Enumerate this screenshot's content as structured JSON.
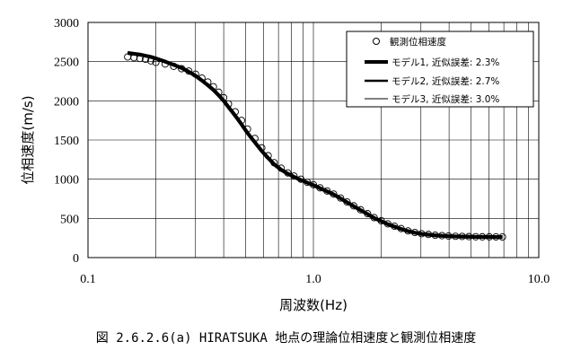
{
  "chart_data": {
    "type": "line",
    "xscale": "log",
    "xlim": [
      0.1,
      10.0
    ],
    "ylim": [
      0,
      3000
    ],
    "xticks": [
      "0.1",
      "1.0",
      "10.0"
    ],
    "yticks": [
      "0",
      "500",
      "1000",
      "1500",
      "2000",
      "2500",
      "3000"
    ],
    "xlabel": "周波数(Hz)",
    "ylabel": "位相速度(m/s)",
    "grid": true,
    "legend_position": "top-right",
    "series": [
      {
        "name": "観測位相速度",
        "style": "markers",
        "x": [
          0.15,
          0.16,
          0.17,
          0.18,
          0.19,
          0.2,
          0.22,
          0.24,
          0.26,
          0.28,
          0.3,
          0.32,
          0.34,
          0.36,
          0.38,
          0.4,
          0.42,
          0.45,
          0.48,
          0.51,
          0.55,
          0.59,
          0.63,
          0.67,
          0.72,
          0.77,
          0.82,
          0.88,
          0.94,
          1.0,
          1.07,
          1.15,
          1.23,
          1.32,
          1.41,
          1.51,
          1.62,
          1.74,
          1.86,
          2.0,
          2.14,
          2.29,
          2.45,
          2.63,
          2.82,
          3.02,
          3.24,
          3.47,
          3.72,
          3.98,
          4.27,
          4.57,
          4.9,
          5.25,
          5.62,
          6.03,
          6.46,
          6.9
        ],
        "y": [
          2560,
          2550,
          2540,
          2530,
          2510,
          2490,
          2470,
          2440,
          2410,
          2380,
          2340,
          2290,
          2240,
          2180,
          2110,
          2040,
          1960,
          1860,
          1750,
          1640,
          1520,
          1400,
          1300,
          1210,
          1140,
          1080,
          1040,
          1000,
          960,
          930,
          890,
          850,
          810,
          760,
          710,
          660,
          610,
          560,
          510,
          470,
          430,
          400,
          370,
          340,
          320,
          305,
          295,
          285,
          280,
          275,
          272,
          270,
          268,
          266,
          265,
          265,
          264,
          263
        ]
      },
      {
        "name": "モデル1, 近似誤差: 2.3%",
        "style": "line-thick",
        "x": [
          0.15,
          0.16,
          0.17,
          0.18,
          0.19,
          0.2,
          0.22,
          0.24,
          0.26,
          0.28,
          0.3,
          0.32,
          0.34,
          0.36,
          0.38,
          0.4,
          0.42,
          0.45,
          0.48,
          0.51,
          0.55,
          0.59,
          0.63,
          0.67,
          0.72,
          0.77,
          0.82,
          0.88,
          0.94,
          1.0,
          1.07,
          1.15,
          1.23,
          1.32,
          1.41,
          1.51,
          1.62,
          1.74,
          1.86,
          2.0,
          2.14,
          2.29,
          2.45,
          2.63,
          2.82,
          3.02,
          3.24,
          3.47,
          3.72,
          3.98,
          4.27,
          4.57,
          4.9,
          5.25,
          5.62,
          6.03,
          6.46,
          6.9
        ],
        "y": [
          2610,
          2600,
          2590,
          2575,
          2560,
          2540,
          2500,
          2460,
          2420,
          2370,
          2320,
          2260,
          2200,
          2140,
          2070,
          2000,
          1920,
          1810,
          1700,
          1590,
          1470,
          1360,
          1270,
          1190,
          1120,
          1070,
          1030,
          990,
          955,
          925,
          885,
          845,
          805,
          755,
          705,
          655,
          605,
          555,
          505,
          465,
          425,
          395,
          365,
          337,
          317,
          302,
          292,
          283,
          278,
          273,
          270,
          268,
          266,
          264,
          263,
          263,
          262,
          262
        ]
      },
      {
        "name": "モデル2, 近似誤差: 2.7%",
        "style": "line-medium",
        "x": [
          0.15,
          0.16,
          0.17,
          0.18,
          0.19,
          0.2,
          0.22,
          0.24,
          0.26,
          0.28,
          0.3,
          0.32,
          0.34,
          0.36,
          0.38,
          0.4,
          0.42,
          0.45,
          0.48,
          0.51,
          0.55,
          0.59,
          0.63,
          0.67,
          0.72,
          0.77,
          0.82,
          0.88,
          0.94,
          1.0,
          1.07,
          1.15,
          1.23,
          1.32,
          1.41,
          1.51,
          1.62,
          1.74,
          1.86,
          2.0,
          2.14,
          2.29,
          2.45,
          2.63,
          2.82,
          3.02,
          3.24,
          3.47,
          3.72,
          3.98,
          4.27,
          4.57,
          4.9,
          5.25,
          5.62,
          6.03,
          6.46,
          6.9
        ],
        "y": [
          2620,
          2605,
          2592,
          2578,
          2562,
          2542,
          2502,
          2462,
          2421,
          2371,
          2321,
          2262,
          2202,
          2142,
          2072,
          2002,
          1922,
          1812,
          1702,
          1592,
          1472,
          1362,
          1272,
          1192,
          1122,
          1072,
          1032,
          992,
          957,
          927,
          887,
          847,
          807,
          757,
          707,
          657,
          607,
          557,
          507,
          467,
          427,
          397,
          367,
          338,
          318,
          303,
          293,
          284,
          279,
          274,
          271,
          269,
          267,
          265,
          264,
          264,
          263,
          263
        ]
      },
      {
        "name": "モデル3, 近似誤差: 3.0%",
        "style": "line-thin",
        "x": [
          0.15,
          0.16,
          0.17,
          0.18,
          0.19,
          0.2,
          0.22,
          0.24,
          0.26,
          0.28,
          0.3,
          0.32,
          0.34,
          0.36,
          0.38,
          0.4,
          0.42,
          0.45,
          0.48,
          0.51,
          0.55,
          0.59,
          0.63,
          0.67,
          0.72,
          0.77,
          0.82,
          0.88,
          0.94,
          1.0,
          1.07,
          1.15,
          1.23,
          1.32,
          1.41,
          1.51,
          1.62,
          1.74,
          1.86,
          2.0,
          2.14,
          2.29,
          2.45,
          2.63,
          2.82,
          3.02,
          3.24,
          3.47,
          3.72,
          3.98,
          4.27,
          4.57,
          4.9,
          5.25,
          5.62,
          6.03,
          6.46,
          6.9
        ],
        "y": [
          2600,
          2595,
          2588,
          2574,
          2558,
          2538,
          2498,
          2458,
          2418,
          2368,
          2318,
          2258,
          2198,
          2138,
          2068,
          1998,
          1918,
          1808,
          1698,
          1588,
          1468,
          1358,
          1268,
          1188,
          1118,
          1068,
          1028,
          988,
          953,
          923,
          883,
          843,
          803,
          753,
          703,
          653,
          603,
          553,
          503,
          463,
          423,
          393,
          363,
          335,
          315,
          300,
          290,
          282,
          277,
          272,
          269,
          267,
          265,
          263,
          262,
          262,
          261,
          261
        ]
      }
    ]
  },
  "caption": "図 2.6.2.6(a)  HIRATSUKA 地点の理論位相速度と観測位相速度"
}
